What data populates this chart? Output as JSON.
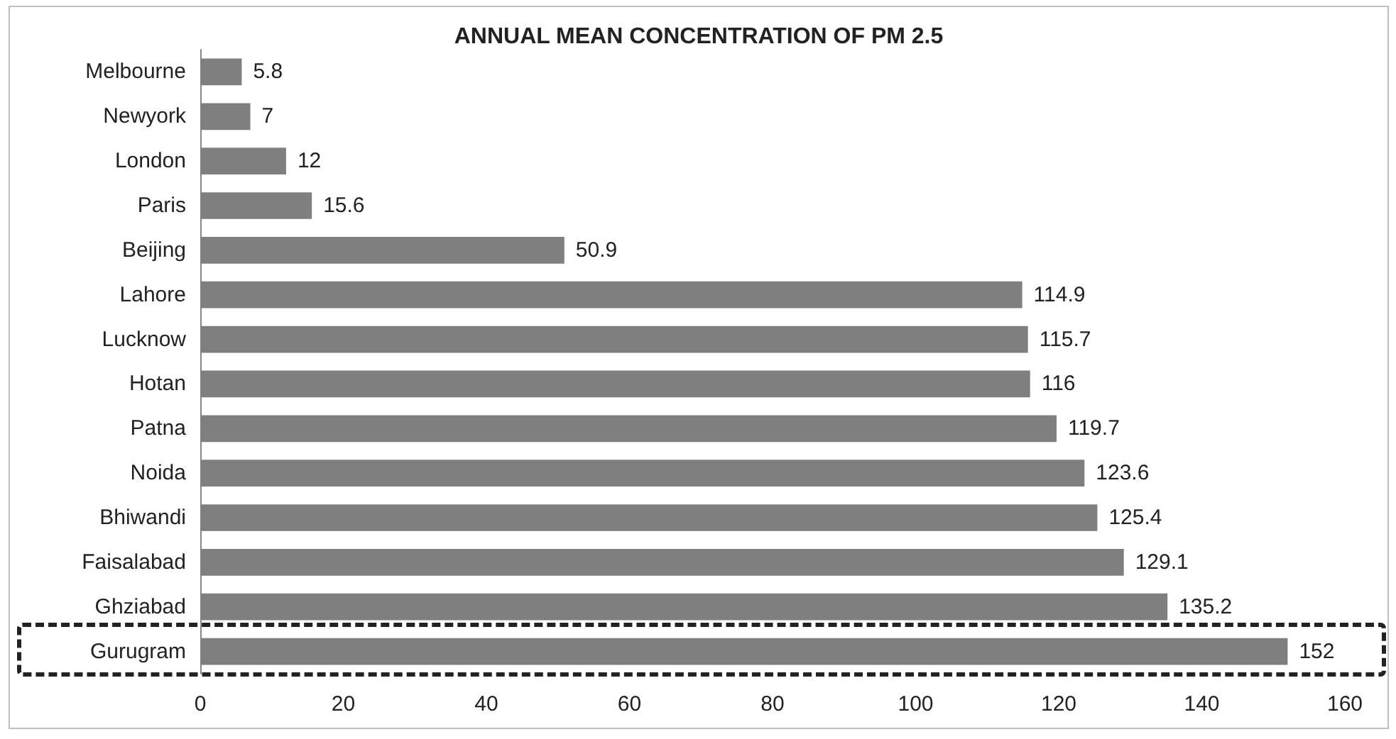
{
  "chart_data": {
    "type": "bar",
    "orientation": "horizontal",
    "title": "ANNUAL MEAN CONCENTRATION OF PM 2.5",
    "categories": [
      "Melbourne",
      "Newyork",
      "London",
      "Paris",
      "Beijing",
      "Lahore",
      "Lucknow",
      "Hotan",
      "Patna",
      "Noida",
      "Bhiwandi",
      "Faisalabad",
      "Ghziabad",
      "Gurugram"
    ],
    "values": [
      5.8,
      7,
      12,
      15.6,
      50.9,
      114.9,
      115.7,
      116,
      119.7,
      123.6,
      125.4,
      129.1,
      135.2,
      152
    ],
    "color": "#7f7f80",
    "xlim": [
      0,
      160
    ],
    "xticks": [
      0,
      20,
      40,
      60,
      80,
      100,
      120,
      140,
      160
    ],
    "data_labels": true
  }
}
